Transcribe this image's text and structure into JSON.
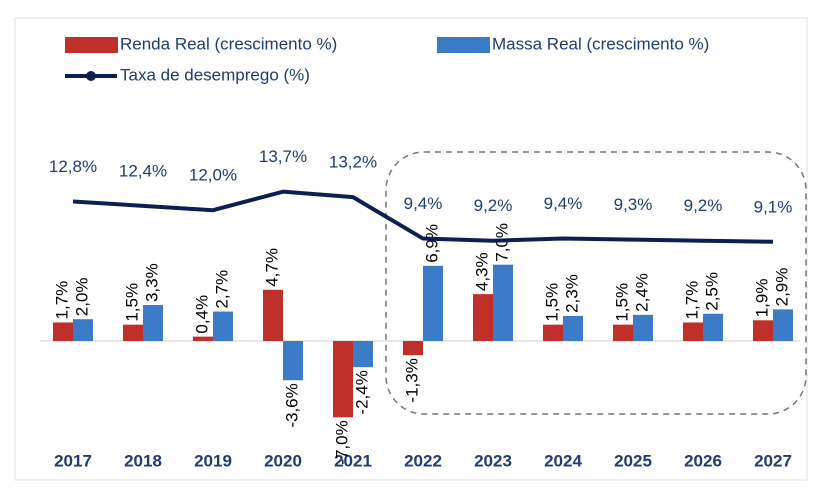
{
  "chart_data": {
    "type": "bar",
    "categories": [
      "2017",
      "2018",
      "2019",
      "2020",
      "2021",
      "2022",
      "2023",
      "2024",
      "2025",
      "2026",
      "2027"
    ],
    "ylim": [
      -8,
      17
    ],
    "series": [
      {
        "name": "Renda Real (crescimento %)",
        "color": "#c0302b",
        "values": [
          1.7,
          1.5,
          0.4,
          4.7,
          -7.0,
          -1.3,
          4.3,
          1.5,
          1.5,
          1.7,
          1.9
        ],
        "value_labels": [
          "1,7%",
          "1,5%",
          "0,4%",
          "4,7%",
          "-7,0%",
          "-1,3%",
          "4,3%",
          "1,5%",
          "1,5%",
          "1,7%",
          "1,9%"
        ]
      },
      {
        "name": "Massa Real (crescimento %)",
        "color": "#3b7bc8",
        "values": [
          2.0,
          3.3,
          2.7,
          -3.6,
          -2.4,
          6.9,
          7.0,
          2.3,
          2.4,
          2.5,
          2.9
        ],
        "value_labels": [
          "2,0%",
          "3,3%",
          "2,7%",
          "-3,6%",
          "-2,4%",
          "6,9%",
          "7,0%",
          "2,3%",
          "2,4%",
          "2,5%",
          "2,9%"
        ]
      },
      {
        "name": "Taxa de desemprego (%)",
        "color": "#0d1f4e",
        "type": "line",
        "values": [
          12.8,
          12.4,
          12.0,
          13.7,
          13.2,
          9.4,
          9.2,
          9.4,
          9.3,
          9.2,
          9.1
        ],
        "value_labels": [
          "12,8%",
          "12,4%",
          "12,0%",
          "13,7%",
          "13,2%",
          "9,4%",
          "9,2%",
          "9,4%",
          "9,3%",
          "9,2%",
          "9,1%"
        ]
      }
    ]
  }
}
